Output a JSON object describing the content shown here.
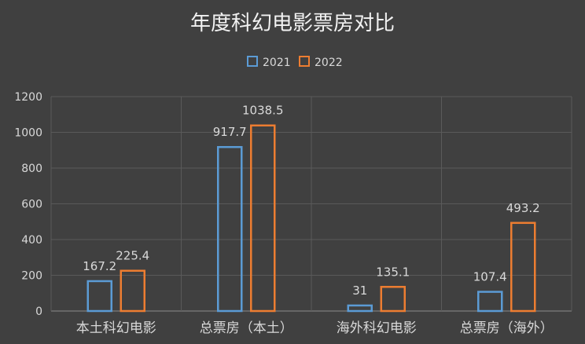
{
  "chart_data": {
    "type": "bar",
    "title": "年度科幻电影票房对比",
    "categories": [
      "本土科幻电影",
      "总票房（本土）",
      "海外科幻电影",
      "总票房（海外）"
    ],
    "series": [
      {
        "name": "2021",
        "values": [
          167.2,
          917.7,
          31,
          107.4
        ],
        "color": "#5b9bd5"
      },
      {
        "name": "2022",
        "values": [
          225.4,
          1038.5,
          135.1,
          493.2
        ],
        "color": "#ed7d31"
      }
    ],
    "y_ticks": [
      "0",
      "200",
      "400",
      "600",
      "800",
      "1000",
      "1200"
    ],
    "ylim": [
      0,
      1200
    ],
    "grid": true,
    "legend_position": "top-center",
    "bar_style": "outline"
  }
}
